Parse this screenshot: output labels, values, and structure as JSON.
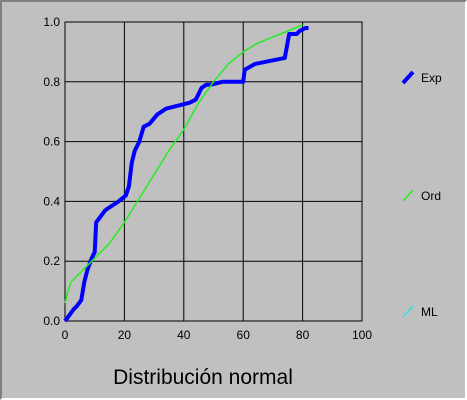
{
  "chart_data": {
    "type": "line",
    "title": "",
    "xlabel": "Distribución normal",
    "ylabel": "",
    "xlim": [
      0,
      100
    ],
    "ylim": [
      0,
      1
    ],
    "x_ticks": [
      "0",
      "20",
      "40",
      "60",
      "80",
      "100"
    ],
    "y_ticks": [
      "0.0",
      "0.2",
      "0.4",
      "0.6",
      "0.8",
      "1.0"
    ],
    "grid": true,
    "legend_position": "right",
    "series": [
      {
        "name": "Exp",
        "color": "#0000ff",
        "points": [
          [
            0,
            0
          ],
          [
            1.5,
            0.02
          ],
          [
            3,
            0.04
          ],
          [
            4,
            0.05
          ],
          [
            5.5,
            0.07
          ],
          [
            6.5,
            0.13
          ],
          [
            7.5,
            0.17
          ],
          [
            9,
            0.21
          ],
          [
            10,
            0.23
          ],
          [
            10.5,
            0.33
          ],
          [
            13.5,
            0.37
          ],
          [
            15,
            0.38
          ],
          [
            18,
            0.4
          ],
          [
            20.5,
            0.42
          ],
          [
            21.5,
            0.45
          ],
          [
            22.5,
            0.53
          ],
          [
            23.5,
            0.57
          ],
          [
            25,
            0.6
          ],
          [
            26.5,
            0.65
          ],
          [
            28.5,
            0.66
          ],
          [
            31,
            0.69
          ],
          [
            34,
            0.71
          ],
          [
            38,
            0.72
          ],
          [
            42,
            0.73
          ],
          [
            44,
            0.74
          ],
          [
            45,
            0.76
          ],
          [
            46,
            0.78
          ],
          [
            47.5,
            0.79
          ],
          [
            49,
            0.79
          ],
          [
            53,
            0.8
          ],
          [
            60,
            0.8
          ],
          [
            60.5,
            0.84
          ],
          [
            64,
            0.86
          ],
          [
            69,
            0.87
          ],
          [
            74,
            0.88
          ],
          [
            75.5,
            0.96
          ],
          [
            78,
            0.96
          ],
          [
            79,
            0.97
          ],
          [
            81,
            0.98
          ],
          [
            82,
            0.98
          ]
        ]
      },
      {
        "name": "Ord",
        "color": "#22ee22",
        "points": [
          [
            0,
            0.06
          ],
          [
            1,
            0.1
          ],
          [
            2,
            0.13
          ],
          [
            5,
            0.16
          ],
          [
            10,
            0.21
          ],
          [
            15,
            0.26
          ],
          [
            20,
            0.33
          ],
          [
            25,
            0.41
          ],
          [
            30,
            0.49
          ],
          [
            35,
            0.57
          ],
          [
            40,
            0.64
          ],
          [
            45,
            0.73
          ],
          [
            50,
            0.8
          ],
          [
            55,
            0.86
          ],
          [
            60,
            0.9
          ],
          [
            65,
            0.93
          ],
          [
            70,
            0.95
          ],
          [
            75,
            0.97
          ],
          [
            80,
            0.99
          ]
        ]
      },
      {
        "name": "ML",
        "color": "#33dddd",
        "points": []
      }
    ]
  }
}
